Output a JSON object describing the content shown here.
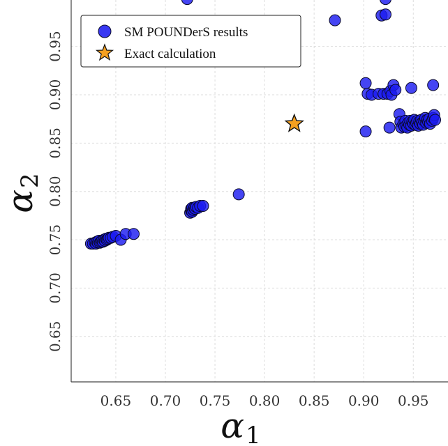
{
  "chart_data": {
    "type": "scatter",
    "title": "",
    "xlabel": "α",
    "xlabel_sub": "1",
    "ylabel": "α",
    "ylabel_sub": "2",
    "xlim": [
      0.605,
      0.985
    ],
    "ylim": [
      0.603,
      0.998
    ],
    "xticks": [
      0.65,
      0.7,
      0.75,
      0.8,
      0.85,
      0.9,
      0.95
    ],
    "xtick_labels": [
      "0.65",
      "0.70",
      "0.75",
      "0.80",
      "0.85",
      "0.90",
      "0.95"
    ],
    "yticks": [
      0.65,
      0.7,
      0.75,
      0.8,
      0.85,
      0.9,
      0.95
    ],
    "ytick_labels": [
      "0.65",
      "0.70",
      "0.75",
      "0.80",
      "0.85",
      "0.90",
      "0.95"
    ],
    "grid": true,
    "legend_position": "top-left",
    "colors": {
      "points": "#1c1cf0",
      "star": "#f5a020",
      "edge": "#0a0a2a"
    },
    "series": [
      {
        "name": "SM POUNDerS results",
        "marker": "circle",
        "points": [
          [
            0.625,
            0.746
          ],
          [
            0.627,
            0.746
          ],
          [
            0.629,
            0.747
          ],
          [
            0.63,
            0.746
          ],
          [
            0.631,
            0.748
          ],
          [
            0.632,
            0.747
          ],
          [
            0.633,
            0.749
          ],
          [
            0.634,
            0.747
          ],
          [
            0.635,
            0.748
          ],
          [
            0.636,
            0.749
          ],
          [
            0.637,
            0.748
          ],
          [
            0.638,
            0.75
          ],
          [
            0.639,
            0.749
          ],
          [
            0.64,
            0.751
          ],
          [
            0.641,
            0.75
          ],
          [
            0.642,
            0.751
          ],
          [
            0.643,
            0.752
          ],
          [
            0.645,
            0.752
          ],
          [
            0.647,
            0.753
          ],
          [
            0.65,
            0.754
          ],
          [
            0.655,
            0.75
          ],
          [
            0.66,
            0.756
          ],
          [
            0.668,
            0.756
          ],
          [
            0.725,
            0.778
          ],
          [
            0.726,
            0.78
          ],
          [
            0.726,
            0.782
          ],
          [
            0.727,
            0.779
          ],
          [
            0.727,
            0.783
          ],
          [
            0.728,
            0.781
          ],
          [
            0.729,
            0.783
          ],
          [
            0.73,
            0.782
          ],
          [
            0.731,
            0.784
          ],
          [
            0.733,
            0.783
          ],
          [
            0.735,
            0.785
          ],
          [
            0.738,
            0.785
          ],
          [
            0.774,
            0.797
          ],
          [
            0.722,
            0.999
          ],
          [
            0.871,
            0.977
          ],
          [
            0.918,
            0.982
          ],
          [
            0.922,
            0.983
          ],
          [
            0.922,
            0.999
          ],
          [
            0.902,
            0.912
          ],
          [
            0.904,
            0.901
          ],
          [
            0.908,
            0.9
          ],
          [
            0.915,
            0.901
          ],
          [
            0.92,
            0.901
          ],
          [
            0.924,
            0.901
          ],
          [
            0.927,
            0.904
          ],
          [
            0.928,
            0.9
          ],
          [
            0.93,
            0.91
          ],
          [
            0.932,
            0.905
          ],
          [
            0.948,
            0.907
          ],
          [
            0.97,
            0.91
          ],
          [
            0.902,
            0.862
          ],
          [
            0.926,
            0.866
          ],
          [
            0.936,
            0.88
          ],
          [
            0.937,
            0.872
          ],
          [
            0.938,
            0.866
          ],
          [
            0.94,
            0.87
          ],
          [
            0.941,
            0.867
          ],
          [
            0.942,
            0.873
          ],
          [
            0.943,
            0.868
          ],
          [
            0.944,
            0.866
          ],
          [
            0.945,
            0.871
          ],
          [
            0.946,
            0.869
          ],
          [
            0.947,
            0.873
          ],
          [
            0.948,
            0.868
          ],
          [
            0.949,
            0.872
          ],
          [
            0.95,
            0.87
          ],
          [
            0.951,
            0.874
          ],
          [
            0.952,
            0.869
          ],
          [
            0.953,
            0.871
          ],
          [
            0.954,
            0.873
          ],
          [
            0.955,
            0.868
          ],
          [
            0.956,
            0.872
          ],
          [
            0.957,
            0.87
          ],
          [
            0.958,
            0.874
          ],
          [
            0.959,
            0.871
          ],
          [
            0.96,
            0.869
          ],
          [
            0.961,
            0.873
          ],
          [
            0.962,
            0.876
          ],
          [
            0.963,
            0.871
          ],
          [
            0.964,
            0.874
          ],
          [
            0.965,
            0.872
          ],
          [
            0.966,
            0.875
          ],
          [
            0.967,
            0.87
          ],
          [
            0.969,
            0.873
          ],
          [
            0.97,
            0.876
          ],
          [
            0.971,
            0.879
          ],
          [
            0.972,
            0.874
          ]
        ]
      },
      {
        "name": "Exact calculation",
        "marker": "star",
        "points": [
          [
            0.83,
            0.87
          ]
        ]
      }
    ]
  }
}
